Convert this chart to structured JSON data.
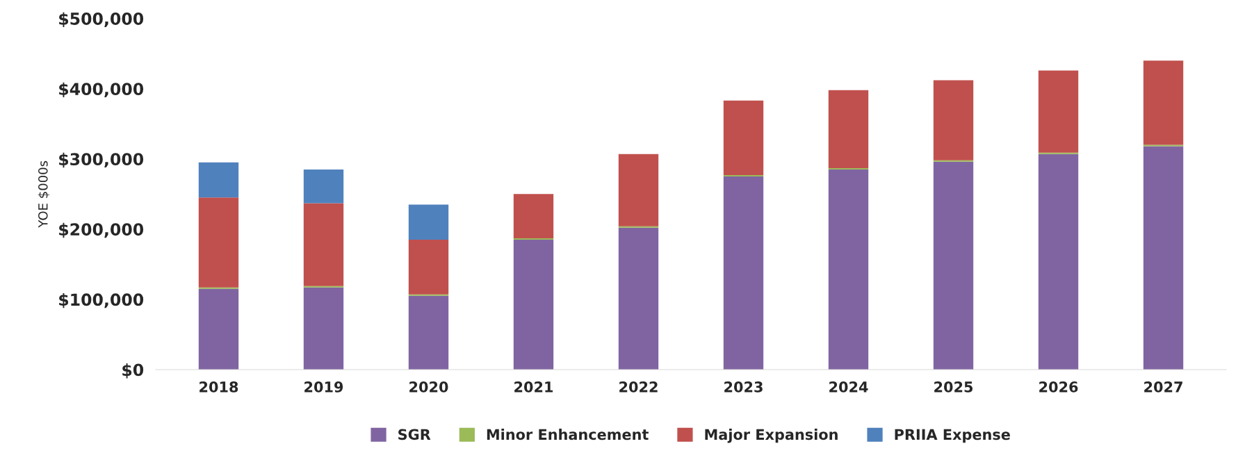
{
  "chart_data": {
    "type": "bar",
    "stacked": true,
    "ylabel": "YOE $000s",
    "categories": [
      "2018",
      "2019",
      "2020",
      "2021",
      "2022",
      "2023",
      "2024",
      "2025",
      "2026",
      "2027"
    ],
    "series": [
      {
        "name": "SGR",
        "color": "#8064a2",
        "values": [
          115000,
          117000,
          105000,
          185000,
          202000,
          275000,
          285000,
          296000,
          307000,
          318000
        ]
      },
      {
        "name": "Minor Enhancement",
        "color": "#9bbb59",
        "values": [
          2000,
          2000,
          2000,
          2000,
          2000,
          2000,
          2000,
          2000,
          2000,
          2000
        ]
      },
      {
        "name": "Major Expansion",
        "color": "#c0504d",
        "values": [
          128000,
          118000,
          78000,
          63000,
          103000,
          106000,
          111000,
          114000,
          117000,
          120000
        ]
      },
      {
        "name": "PRIIA Expense",
        "color": "#4f81bd",
        "values": [
          50000,
          48000,
          50000,
          null,
          null,
          null,
          null,
          null,
          null,
          null
        ]
      }
    ],
    "ylim": [
      0,
      500000
    ],
    "yticks": [
      {
        "value": 0,
        "label": "$0"
      },
      {
        "value": 100000,
        "label": "$100,000"
      },
      {
        "value": 200000,
        "label": "$200,000"
      },
      {
        "value": 300000,
        "label": "$300,000"
      },
      {
        "value": 400000,
        "label": "$400,000"
      },
      {
        "value": 500000,
        "label": "$500,000"
      }
    ],
    "grid": false,
    "legend": "bottom"
  }
}
